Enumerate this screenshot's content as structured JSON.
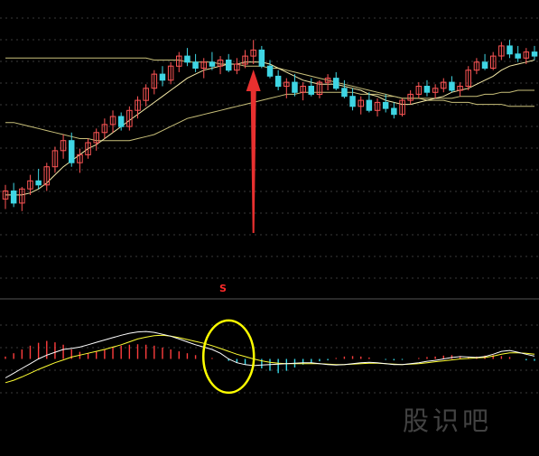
{
  "chart_data": {
    "type": "candlestick",
    "title": "",
    "grid": true,
    "colors": {
      "background": "#000000",
      "up": "#ff5555",
      "down": "#3fd5e3",
      "ma_short": "#f5e9a6",
      "ma_long": "#c9c07a",
      "macd_dif": "#ffffff",
      "macd_dea": "#ffff33",
      "macd_hist_positive": "#ff3d3d",
      "macd_hist_negative": "#33d6e6",
      "arrow": "#e8302f",
      "highlight_circle": "#ffff00",
      "grid": "#3a3a3a"
    },
    "price_range": [
      0,
      100
    ],
    "candles": [
      {
        "o": 20,
        "h": 27,
        "l": 15,
        "c": 24
      },
      {
        "o": 24,
        "h": 28,
        "l": 16,
        "c": 18
      },
      {
        "o": 18,
        "h": 26,
        "l": 14,
        "c": 25
      },
      {
        "o": 25,
        "h": 32,
        "l": 22,
        "c": 29
      },
      {
        "o": 29,
        "h": 35,
        "l": 25,
        "c": 27
      },
      {
        "o": 27,
        "h": 38,
        "l": 24,
        "c": 36
      },
      {
        "o": 36,
        "h": 46,
        "l": 33,
        "c": 44
      },
      {
        "o": 44,
        "h": 52,
        "l": 40,
        "c": 49
      },
      {
        "o": 49,
        "h": 53,
        "l": 36,
        "c": 38
      },
      {
        "o": 38,
        "h": 45,
        "l": 33,
        "c": 42
      },
      {
        "o": 42,
        "h": 50,
        "l": 40,
        "c": 48
      },
      {
        "o": 48,
        "h": 55,
        "l": 44,
        "c": 53
      },
      {
        "o": 53,
        "h": 60,
        "l": 50,
        "c": 57
      },
      {
        "o": 57,
        "h": 64,
        "l": 53,
        "c": 61
      },
      {
        "o": 61,
        "h": 63,
        "l": 54,
        "c": 56
      },
      {
        "o": 56,
        "h": 66,
        "l": 54,
        "c": 64
      },
      {
        "o": 64,
        "h": 71,
        "l": 60,
        "c": 69
      },
      {
        "o": 69,
        "h": 77,
        "l": 66,
        "c": 75
      },
      {
        "o": 75,
        "h": 84,
        "l": 72,
        "c": 82
      },
      {
        "o": 82,
        "h": 86,
        "l": 76,
        "c": 79
      },
      {
        "o": 79,
        "h": 88,
        "l": 77,
        "c": 86
      },
      {
        "o": 86,
        "h": 93,
        "l": 83,
        "c": 91
      },
      {
        "o": 91,
        "h": 95,
        "l": 86,
        "c": 88
      },
      {
        "o": 88,
        "h": 92,
        "l": 83,
        "c": 85
      },
      {
        "o": 85,
        "h": 90,
        "l": 80,
        "c": 88
      },
      {
        "o": 88,
        "h": 93,
        "l": 84,
        "c": 86
      },
      {
        "o": 86,
        "h": 91,
        "l": 82,
        "c": 89
      },
      {
        "o": 89,
        "h": 92,
        "l": 83,
        "c": 84
      },
      {
        "o": 84,
        "h": 90,
        "l": 82,
        "c": 87
      },
      {
        "o": 87,
        "h": 94,
        "l": 85,
        "c": 91
      },
      {
        "o": 91,
        "h": 99,
        "l": 87,
        "c": 94
      },
      {
        "o": 94,
        "h": 96,
        "l": 85,
        "c": 86
      },
      {
        "o": 86,
        "h": 89,
        "l": 80,
        "c": 81
      },
      {
        "o": 81,
        "h": 84,
        "l": 74,
        "c": 76
      },
      {
        "o": 76,
        "h": 80,
        "l": 70,
        "c": 78
      },
      {
        "o": 78,
        "h": 82,
        "l": 71,
        "c": 73
      },
      {
        "o": 73,
        "h": 78,
        "l": 69,
        "c": 76
      },
      {
        "o": 76,
        "h": 80,
        "l": 71,
        "c": 72
      },
      {
        "o": 72,
        "h": 79,
        "l": 70,
        "c": 78
      },
      {
        "o": 78,
        "h": 82,
        "l": 74,
        "c": 80
      },
      {
        "o": 80,
        "h": 83,
        "l": 74,
        "c": 75
      },
      {
        "o": 75,
        "h": 79,
        "l": 70,
        "c": 71
      },
      {
        "o": 71,
        "h": 75,
        "l": 64,
        "c": 66
      },
      {
        "o": 66,
        "h": 71,
        "l": 62,
        "c": 69
      },
      {
        "o": 69,
        "h": 73,
        "l": 63,
        "c": 64
      },
      {
        "o": 64,
        "h": 70,
        "l": 61,
        "c": 68
      },
      {
        "o": 68,
        "h": 72,
        "l": 63,
        "c": 65
      },
      {
        "o": 65,
        "h": 68,
        "l": 60,
        "c": 62
      },
      {
        "o": 62,
        "h": 70,
        "l": 61,
        "c": 69
      },
      {
        "o": 69,
        "h": 74,
        "l": 67,
        "c": 72
      },
      {
        "o": 72,
        "h": 78,
        "l": 70,
        "c": 76
      },
      {
        "o": 76,
        "h": 79,
        "l": 71,
        "c": 73
      },
      {
        "o": 73,
        "h": 77,
        "l": 70,
        "c": 75
      },
      {
        "o": 75,
        "h": 80,
        "l": 73,
        "c": 78
      },
      {
        "o": 78,
        "h": 81,
        "l": 73,
        "c": 74
      },
      {
        "o": 74,
        "h": 78,
        "l": 71,
        "c": 76
      },
      {
        "o": 76,
        "h": 86,
        "l": 74,
        "c": 84
      },
      {
        "o": 84,
        "h": 90,
        "l": 82,
        "c": 88
      },
      {
        "o": 88,
        "h": 92,
        "l": 84,
        "c": 85
      },
      {
        "o": 85,
        "h": 93,
        "l": 84,
        "c": 91
      },
      {
        "o": 91,
        "h": 98,
        "l": 89,
        "c": 96
      },
      {
        "o": 96,
        "h": 99,
        "l": 90,
        "c": 92
      },
      {
        "o": 92,
        "h": 96,
        "l": 88,
        "c": 90
      },
      {
        "o": 90,
        "h": 95,
        "l": 87,
        "c": 93
      },
      {
        "o": 93,
        "h": 96,
        "l": 89,
        "c": 91
      }
    ],
    "ma_short": [
      22,
      22,
      22,
      23,
      25,
      28,
      32,
      36,
      39,
      42,
      45,
      47,
      50,
      53,
      56,
      59,
      62,
      65,
      68,
      71,
      74,
      77,
      80,
      82,
      84,
      85,
      86,
      87,
      87,
      88,
      88,
      88,
      87,
      85,
      83,
      81,
      79,
      78,
      77,
      77,
      77,
      76,
      75,
      74,
      72,
      71,
      69,
      68,
      67,
      67,
      68,
      69,
      70,
      71,
      73,
      74,
      75,
      77,
      79,
      81,
      84,
      86,
      87,
      88,
      89
    ],
    "ma_long": [
      58,
      58,
      57,
      56,
      55,
      54,
      53,
      52,
      51,
      50,
      50,
      49,
      49,
      49,
      49,
      49,
      50,
      51,
      52,
      54,
      56,
      58,
      60,
      61,
      62,
      63,
      64,
      65,
      66,
      67,
      68,
      69,
      70,
      71,
      72,
      72,
      73,
      73,
      73,
      73,
      73,
      73,
      73,
      72,
      72,
      72,
      71,
      71,
      70,
      70,
      70,
      70,
      70,
      70,
      70,
      71,
      71,
      71,
      72,
      72,
      73,
      73,
      74,
      74,
      74
    ],
    "ma_flat": [
      90,
      90,
      90,
      90,
      90,
      90,
      90,
      90,
      90,
      90,
      90,
      90,
      90,
      90,
      90,
      90,
      90,
      90,
      89,
      89,
      89,
      89,
      88,
      88,
      88,
      88,
      87,
      87,
      87,
      86,
      86,
      86,
      85,
      85,
      84,
      83,
      82,
      81,
      80,
      79,
      78,
      77,
      76,
      75,
      74,
      73,
      72,
      71,
      70,
      70,
      70,
      69,
      69,
      69,
      68,
      68,
      68,
      67,
      67,
      67,
      67,
      66,
      66,
      66,
      66
    ],
    "macd": {
      "range": [
        -1,
        1
      ],
      "hist": [
        0.05,
        0.12,
        0.2,
        0.28,
        0.34,
        0.38,
        0.35,
        0.3,
        0.2,
        0.15,
        0.12,
        0.16,
        0.2,
        0.25,
        0.28,
        0.3,
        0.31,
        0.3,
        0.28,
        0.24,
        0.2,
        0.16,
        0.12,
        0.08,
        0.04,
        0.02,
        0.0,
        -0.04,
        -0.08,
        -0.12,
        -0.16,
        -0.2,
        -0.25,
        -0.3,
        -0.25,
        -0.18,
        -0.12,
        -0.08,
        -0.05,
        -0.03,
        0.02,
        0.05,
        0.06,
        0.05,
        0.03,
        0.0,
        -0.02,
        -0.03,
        -0.02,
        0.0,
        0.02,
        0.04,
        0.05,
        0.07,
        0.08,
        0.06,
        0.04,
        0.05,
        0.07,
        0.08,
        0.06,
        0.04,
        0.0,
        -0.03,
        -0.04
      ],
      "dif": [
        -0.4,
        -0.3,
        -0.2,
        -0.1,
        0.0,
        0.08,
        0.14,
        0.2,
        0.22,
        0.25,
        0.3,
        0.35,
        0.4,
        0.45,
        0.5,
        0.54,
        0.57,
        0.58,
        0.56,
        0.52,
        0.48,
        0.42,
        0.36,
        0.3,
        0.25,
        0.2,
        0.12,
        0.0,
        -0.08,
        -0.12,
        -0.14,
        -0.13,
        -0.12,
        -0.11,
        -0.1,
        -0.09,
        -0.08,
        -0.08,
        -0.1,
        -0.12,
        -0.13,
        -0.12,
        -0.1,
        -0.08,
        -0.07,
        -0.08,
        -0.1,
        -0.12,
        -0.12,
        -0.1,
        -0.08,
        -0.05,
        -0.03,
        0.0,
        0.03,
        0.05,
        0.04,
        0.03,
        0.05,
        0.1,
        0.16,
        0.18,
        0.14,
        0.1,
        0.06
      ],
      "dea": [
        -0.5,
        -0.45,
        -0.38,
        -0.3,
        -0.22,
        -0.15,
        -0.08,
        -0.02,
        0.04,
        0.08,
        0.12,
        0.16,
        0.2,
        0.25,
        0.3,
        0.36,
        0.42,
        0.46,
        0.49,
        0.5,
        0.48,
        0.45,
        0.41,
        0.37,
        0.33,
        0.28,
        0.22,
        0.16,
        0.1,
        0.05,
        0.0,
        -0.04,
        -0.07,
        -0.09,
        -0.1,
        -0.1,
        -0.1,
        -0.1,
        -0.1,
        -0.11,
        -0.12,
        -0.12,
        -0.11,
        -0.1,
        -0.09,
        -0.09,
        -0.1,
        -0.11,
        -0.12,
        -0.11,
        -0.1,
        -0.08,
        -0.06,
        -0.04,
        -0.02,
        0.0,
        0.01,
        0.02,
        0.03,
        0.06,
        0.1,
        0.13,
        0.13,
        0.12,
        0.1
      ]
    },
    "signal_marker": {
      "index": 30,
      "label": "S"
    },
    "watermark": "股识吧"
  }
}
